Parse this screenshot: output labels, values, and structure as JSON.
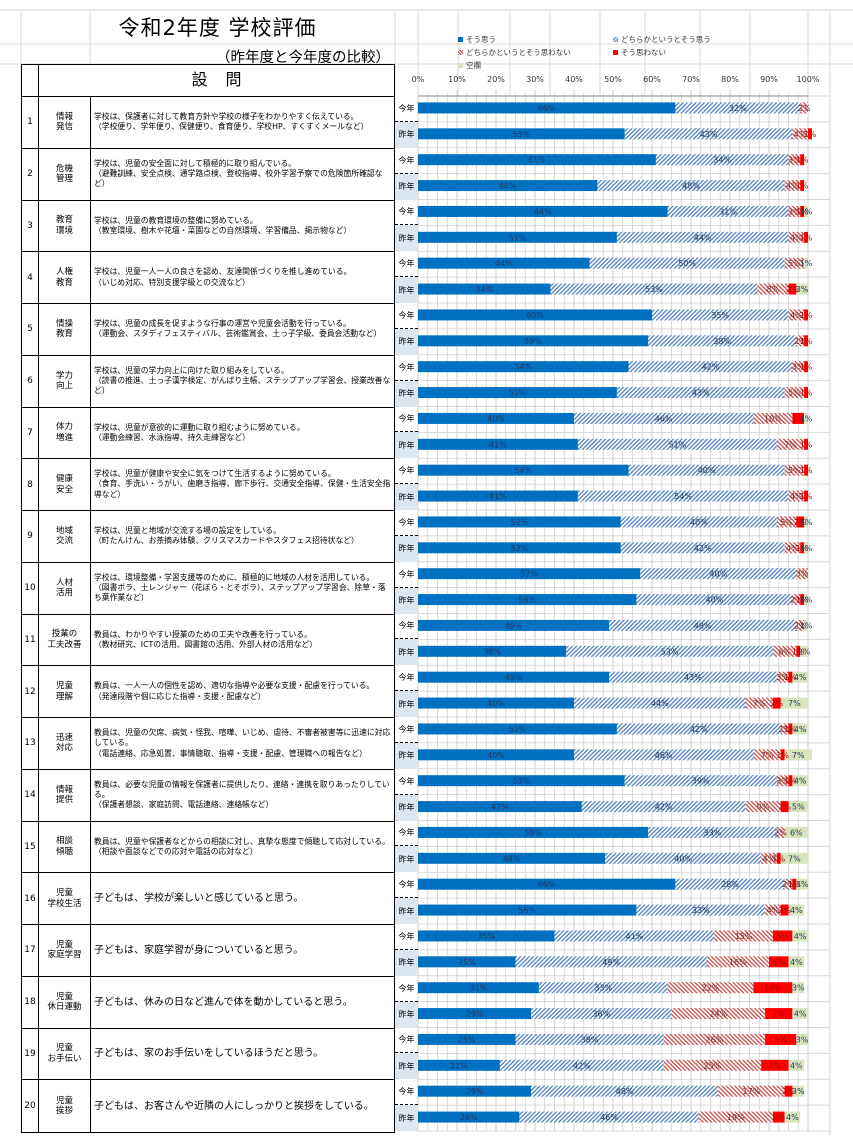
{
  "header": {
    "title": "令和2年度 学校評価",
    "subtitle": "（昨年度と今年度の比較）",
    "question_header": "設問"
  },
  "year_labels": {
    "this_year": "今年",
    "last_year": "昨年"
  },
  "colors": {
    "strongly_agree": "#0070c0",
    "somewhat_agree": "#4f81bd",
    "somewhat_disagree": "#c0504d",
    "disagree": "#ff0000",
    "blank": "#d8e4bc",
    "last_year_bg": "#dce6f1"
  },
  "questions": [
    {
      "no": "1",
      "category": "情報\n発信",
      "text": "学校は、保護者に対して教育方針や学校の様子をわかりやすく伝えている。\n（学校便り、学年便り、保健便り、食育便り、学校HP、すくすくメールなど）"
    },
    {
      "no": "2",
      "category": "危機\n管理",
      "text": "学校は、児童の安全面に対して積極的に取り組んでいる。\n（避難訓練、安全点検、通学路点検、登校指導、校外学習予察での危険箇所確認など）"
    },
    {
      "no": "3",
      "category": "教育\n環境",
      "text": "学校は、児童の教育環境の整備に努めている。\n（教室環境、樹木や花壇・菜園などの自然環境、学習備品、掲示物など）"
    },
    {
      "no": "4",
      "category": "人権\n教育",
      "text": "学校は、児童一人一人の良さを認め、友達関係づくりを推し進めている。\n（いじめ対応、特別支援学級との交流など）"
    },
    {
      "no": "5",
      "category": "情操\n教育",
      "text": "学校は、児童の成長を促すような行事の運営や児童会活動を行っている。\n（運動会、スタディフェスティバル、芸術鑑賞会、土っ子学級、委員会活動など）"
    },
    {
      "no": "6",
      "category": "学力\n向上",
      "text": "学校は、児童の学力向上に向けた取り組みをしている。\n（読書の推進、土っ子漢字検定、がんばり主帳、ステップアップ学習会、授業改善など）"
    },
    {
      "no": "7",
      "category": "体力\n増進",
      "text": "学校は、児童が意欲的に運動に取り組むように努めている。\n（運動会練習、水泳指導、持久走練習など）"
    },
    {
      "no": "8",
      "category": "健康\n安全",
      "text": "学校は、児童が健康や安全に気をつけて生活するように努めている。\n（食育、手洗い・うがい、歯磨き指導、廊下歩行、交通安全指導、保健・生活安全指導など）"
    },
    {
      "no": "9",
      "category": "地域\n交流",
      "text": "学校は、児童と地域が交流する場の設定をしている。\n（町たんけん、お茶摘み体験、クリスマスカードやスタフェス招待状など）"
    },
    {
      "no": "10",
      "category": "人材\n活用",
      "text": "学校は、環境整備・学習支援等のために、積極的に地域の人材を活用している。\n（図書ボラ、土レンジャー（花ぼら・とそボラ）、ステップアップ学習会、除草・落ち葉作業など）"
    },
    {
      "no": "11",
      "category": "授業の\n工夫改善",
      "text": "教員は、わかりやすい授業のための工夫や改善を行っている。\n（教材研究、ICTの活用、図書館の活用、外部人材の活用など）"
    },
    {
      "no": "12",
      "category": "児童\n理解",
      "text": "教員は、一人一人の個性を認め、適切な指導や必要な支援・配慮を行っている。\n（発達段階や個に応じた指導・支援・配慮など）"
    },
    {
      "no": "13",
      "category": "迅速\n対応",
      "text": "教員は、児童の欠席、病気・怪我、喧嘩、いじめ、虐待、不審者被害等に迅速に対応している。\n（電話連絡、応急処置、事情聴取、指導・支援・配慮、管理職への報告など）"
    },
    {
      "no": "14",
      "category": "情報\n提供",
      "text": "教員は、必要な児童の情報を保護者に提供したり、連絡・連携を取りあったりしている。\n（保護者懇談、家庭訪問、電話連絡、連絡帳など）"
    },
    {
      "no": "15",
      "category": "相談\n傾聴",
      "text": "教員は、児童や保護者などからの相談に対し、真摯な態度で傾聴して応対している。\n（相談や面談などでの応対や電話の応対など）"
    },
    {
      "no": "16",
      "category": "児童\n学校生活",
      "text": "子どもは、学校が楽しいと感じていると思う。"
    },
    {
      "no": "17",
      "category": "児童\n家庭学習",
      "text": "子どもは、家庭学習が身についていると思う。"
    },
    {
      "no": "18",
      "category": "児童\n休日運動",
      "text": "子どもは、休みの日など進んで体を動かしていると思う。"
    },
    {
      "no": "19",
      "category": "児童\nお手伝い",
      "text": "子どもは、家のお手伝いをしているほうだと思う。"
    },
    {
      "no": "20",
      "category": "児童\n挨拶",
      "text": "子どもは、お客さんや近隣の人にしっかりと挨拶をしている。"
    }
  ],
  "chart_data": {
    "type": "bar",
    "orientation": "horizontal",
    "stacked": "percent",
    "title": "",
    "xlabel": "",
    "ylabel": "",
    "xlim": [
      0,
      100
    ],
    "x_ticks": [
      "0%",
      "10%",
      "20%",
      "30%",
      "40%",
      "50%",
      "60%",
      "70%",
      "80%",
      "90%",
      "100%"
    ],
    "grid": true,
    "legend_position": "top",
    "legend": [
      "そう思う",
      "どちらかというとそう思う",
      "どちらかというとそう思わない",
      "そう思わない",
      "空欄"
    ],
    "categories": [
      "1 今年",
      "1 昨年",
      "2 今年",
      "2 昨年",
      "3 今年",
      "3 昨年",
      "4 今年",
      "4 昨年",
      "5 今年",
      "5 昨年",
      "6 今年",
      "6 昨年",
      "7 今年",
      "7 昨年",
      "8 今年",
      "8 昨年",
      "9 今年",
      "9 昨年",
      "10 今年",
      "10 昨年",
      "11 今年",
      "11 昨年",
      "12 今年",
      "12 昨年",
      "13 今年",
      "13 昨年",
      "14 今年",
      "14 昨年",
      "15 今年",
      "15 昨年",
      "16 今年",
      "16 昨年",
      "17 今年",
      "17 昨年",
      "18 今年",
      "18 昨年",
      "19 今年",
      "19 昨年",
      "20 今年",
      "20 昨年"
    ],
    "series": [
      {
        "name": "そう思う",
        "values": [
          66,
          53,
          61,
          46,
          64,
          51,
          44,
          34,
          60,
          59,
          54,
          51,
          40,
          41,
          54,
          41,
          52,
          52,
          57,
          56,
          49,
          38,
          49,
          40,
          51,
          40,
          53,
          42,
          59,
          48,
          66,
          56,
          35,
          25,
          31,
          29,
          25,
          21,
          29,
          26
        ]
      },
      {
        "name": "どちらかというとそう思う",
        "values": [
          32,
          43,
          34,
          48,
          31,
          44,
          50,
          53,
          35,
          38,
          42,
          43,
          46,
          51,
          40,
          54,
          40,
          42,
          40,
          40,
          48,
          53,
          43,
          44,
          42,
          46,
          39,
          42,
          33,
          40,
          28,
          33,
          41,
          49,
          33,
          36,
          38,
          42,
          48,
          46
        ]
      },
      {
        "name": "どちらかというとそう思わない",
        "values": [
          2,
          4,
          3,
          4,
          3,
          4,
          5,
          8,
          4,
          2,
          3,
          5,
          10,
          7,
          5,
          4,
          5,
          4,
          3,
          2,
          2,
          6,
          3,
          7,
          2,
          7,
          3,
          9,
          2,
          4,
          2,
          4,
          15,
          16,
          22,
          24,
          26,
          25,
          17,
          19
        ]
      },
      {
        "name": "そう思わない",
        "values": [
          0,
          1,
          1,
          1,
          1,
          1,
          0,
          2,
          1,
          1,
          1,
          1,
          3,
          1,
          1,
          1,
          2,
          1,
          0,
          1,
          0,
          1,
          1,
          2,
          1,
          1,
          1,
          2,
          0,
          1,
          1,
          2,
          5,
          5,
          10,
          7,
          8,
          7,
          2,
          3
        ]
      },
      {
        "name": "空欄",
        "values": [
          0,
          0,
          0,
          0,
          1,
          0,
          1,
          3,
          0,
          0,
          0,
          0,
          1,
          0,
          0,
          0,
          1,
          1,
          0,
          1,
          1,
          2,
          4,
          7,
          4,
          7,
          4,
          5,
          6,
          7,
          3,
          4,
          4,
          4,
          3,
          4,
          3,
          4,
          3,
          4
        ]
      }
    ]
  }
}
